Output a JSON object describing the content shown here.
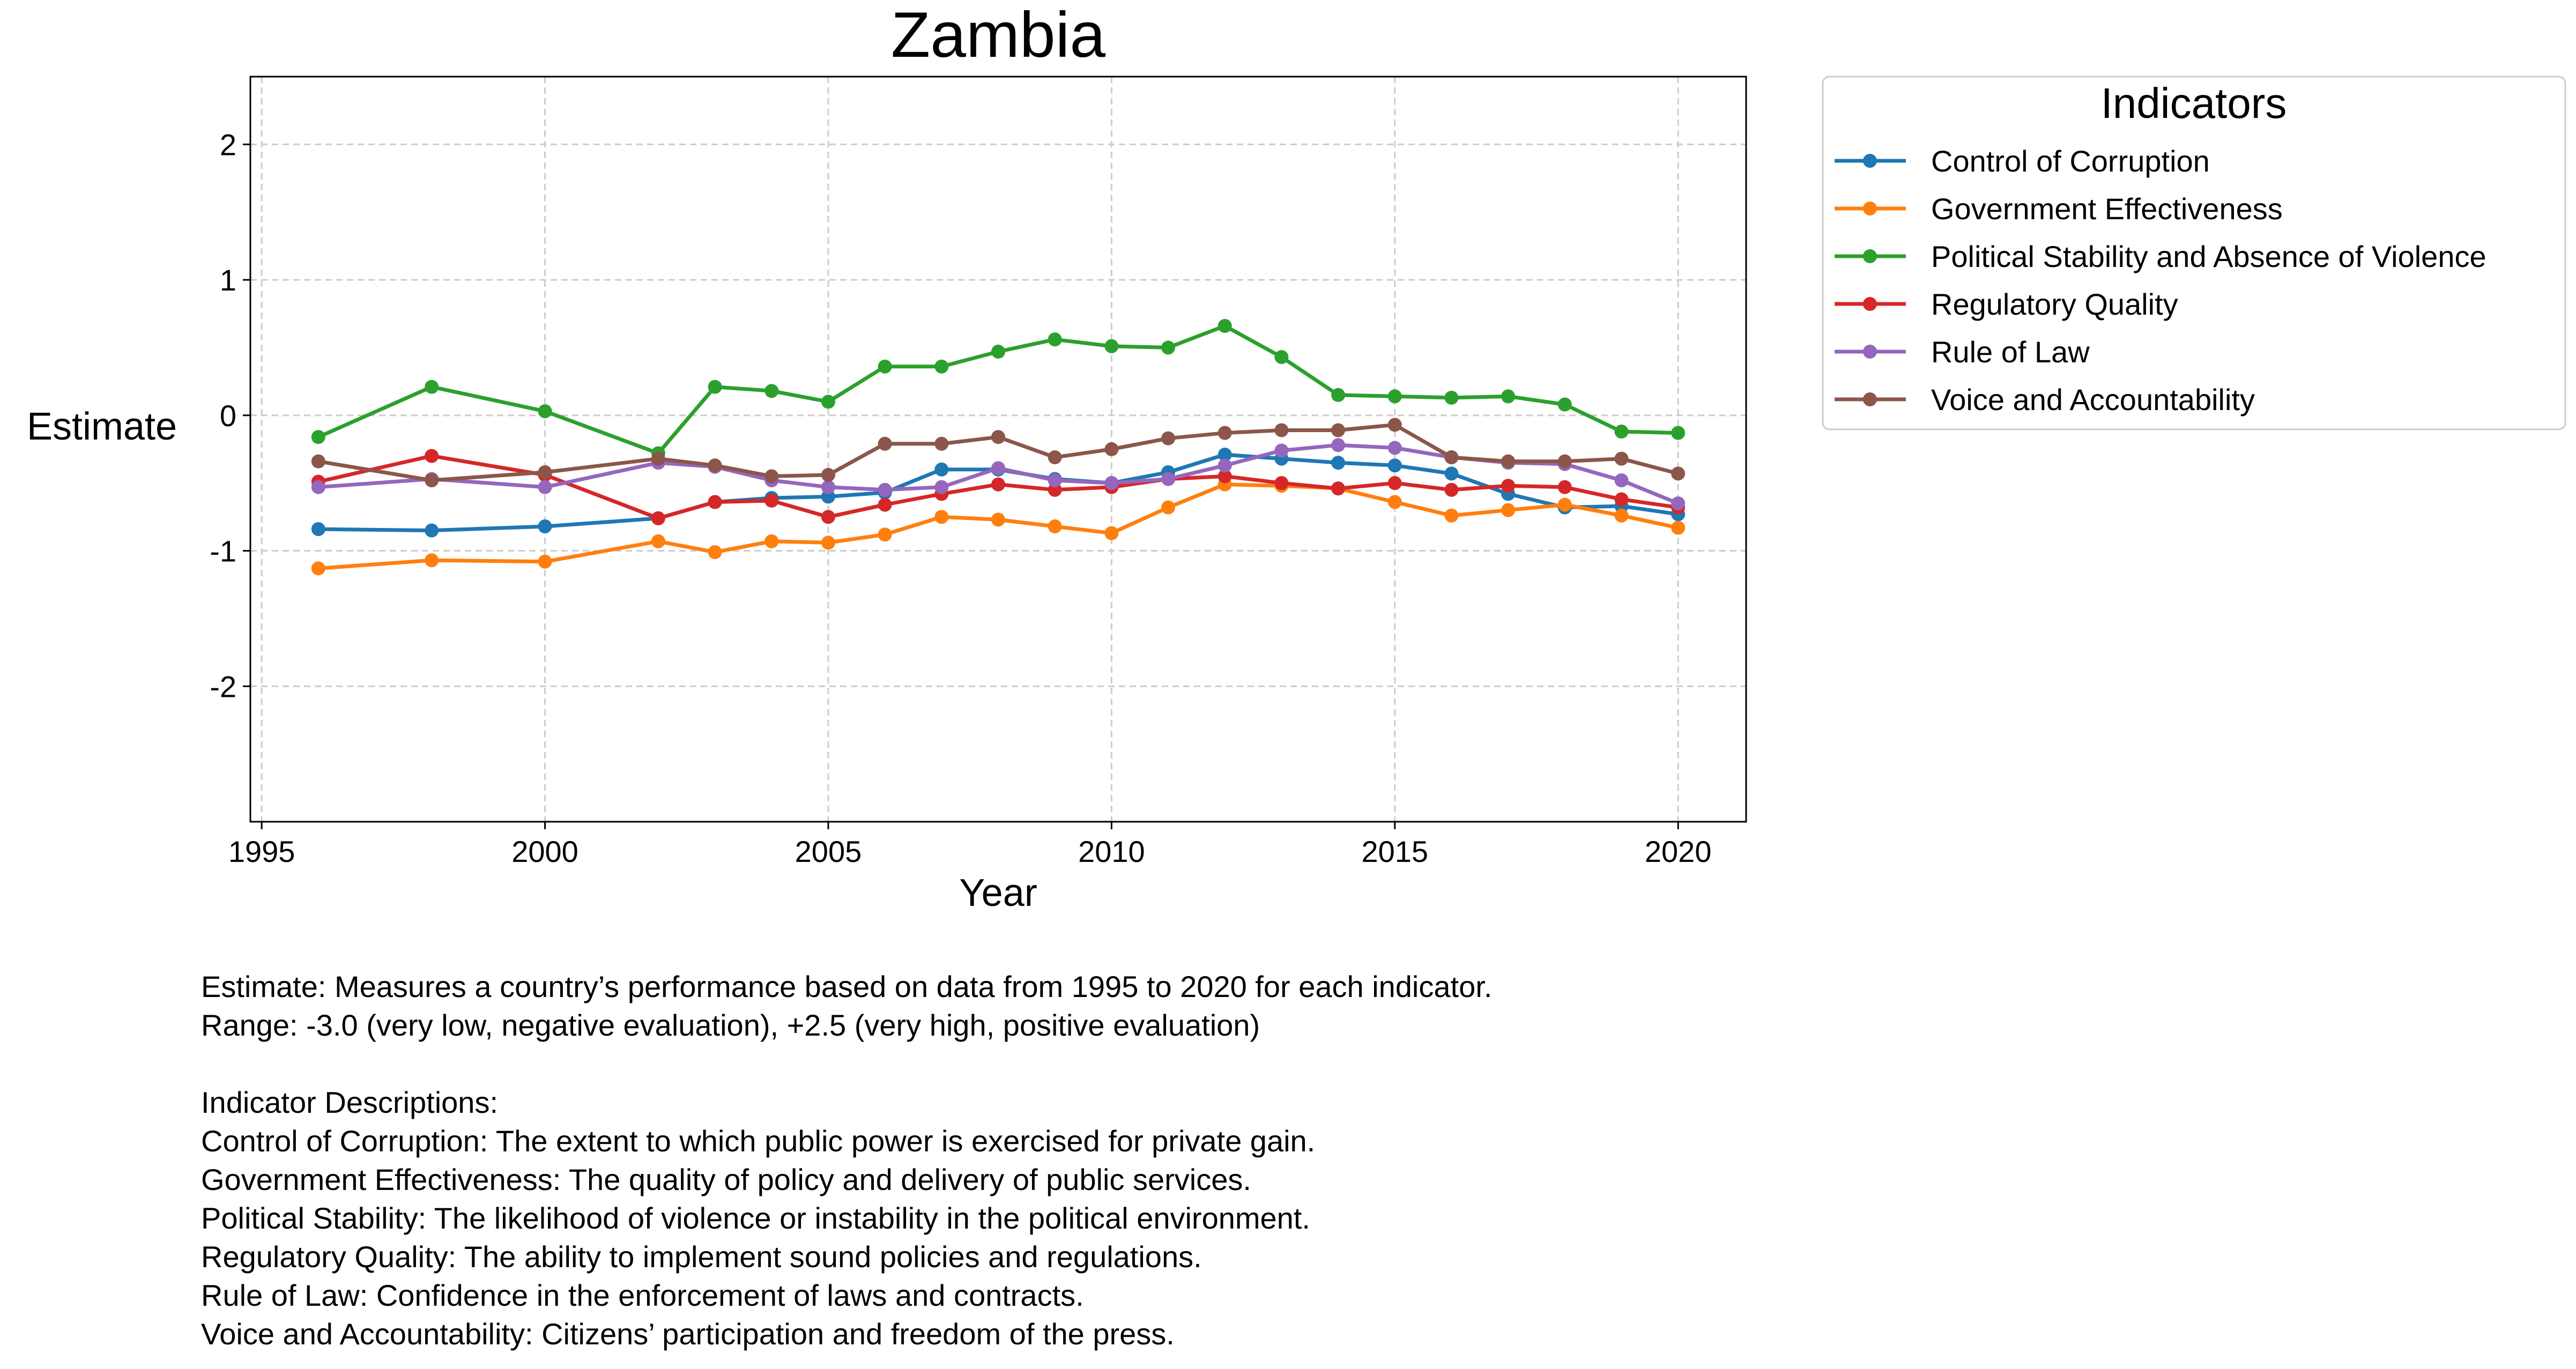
{
  "chart_data": {
    "type": "line",
    "title": "Zambia",
    "xlabel": "Year",
    "ylabel": "Estimate",
    "xlim": [
      1994.8,
      2021.2
    ],
    "ylim": [
      -3.0,
      2.5
    ],
    "x_ticks": [
      1995,
      2000,
      2005,
      2010,
      2015,
      2020
    ],
    "y_ticks": [
      -2,
      -1,
      0,
      1,
      2
    ],
    "grid": true,
    "legend": {
      "title": "Indicators",
      "placement": "outside-top-right"
    },
    "x": [
      1996,
      1998,
      2000,
      2002,
      2003,
      2004,
      2005,
      2006,
      2007,
      2008,
      2009,
      2010,
      2011,
      2012,
      2013,
      2014,
      2015,
      2016,
      2017,
      2018,
      2019,
      2020
    ],
    "series": [
      {
        "name": "Control of Corruption",
        "color": "#1f77b4",
        "values": [
          -0.84,
          -0.85,
          -0.82,
          -0.76,
          -0.64,
          -0.61,
          -0.6,
          -0.57,
          -0.4,
          -0.4,
          -0.47,
          -0.5,
          -0.42,
          -0.29,
          -0.32,
          -0.35,
          -0.37,
          -0.43,
          -0.58,
          -0.68,
          -0.67,
          -0.73
        ]
      },
      {
        "name": "Government Effectiveness",
        "color": "#ff7f0e",
        "values": [
          -1.13,
          -1.07,
          -1.08,
          -0.93,
          -1.01,
          -0.93,
          -0.94,
          -0.88,
          -0.75,
          -0.77,
          -0.82,
          -0.87,
          -0.68,
          -0.51,
          -0.52,
          -0.54,
          -0.64,
          -0.74,
          -0.7,
          -0.66,
          -0.74,
          -0.83
        ]
      },
      {
        "name": "Political Stability and Absence of Violence",
        "color": "#2ca02c",
        "values": [
          -0.16,
          0.21,
          0.03,
          -0.28,
          0.21,
          0.18,
          0.1,
          0.36,
          0.36,
          0.47,
          0.56,
          0.51,
          0.5,
          0.66,
          0.43,
          0.15,
          0.14,
          0.13,
          0.14,
          0.08,
          -0.12,
          -0.13
        ]
      },
      {
        "name": "Regulatory Quality",
        "color": "#d62728",
        "values": [
          -0.49,
          -0.3,
          -0.44,
          -0.76,
          -0.64,
          -0.63,
          -0.75,
          -0.66,
          -0.58,
          -0.51,
          -0.55,
          -0.53,
          -0.47,
          -0.45,
          -0.5,
          -0.54,
          -0.5,
          -0.55,
          -0.52,
          -0.53,
          -0.62,
          -0.68
        ]
      },
      {
        "name": "Rule of Law",
        "color": "#9467bd",
        "values": [
          -0.53,
          -0.47,
          -0.53,
          -0.35,
          -0.38,
          -0.48,
          -0.53,
          -0.55,
          -0.53,
          -0.39,
          -0.48,
          -0.5,
          -0.47,
          -0.37,
          -0.26,
          -0.22,
          -0.24,
          -0.31,
          -0.35,
          -0.36,
          -0.48,
          -0.65
        ]
      },
      {
        "name": "Voice and Accountability",
        "color": "#8c564b",
        "values": [
          -0.34,
          -0.48,
          -0.42,
          -0.32,
          -0.37,
          -0.45,
          -0.44,
          -0.21,
          -0.21,
          -0.16,
          -0.31,
          -0.25,
          -0.17,
          -0.13,
          -0.11,
          -0.11,
          -0.07,
          -0.31,
          -0.34,
          -0.34,
          -0.32,
          -0.43
        ]
      }
    ]
  },
  "notes": {
    "line1": "Estimate: Measures a country’s performance based on data from 1995 to 2020 for each indicator.",
    "line2": "Range: -3.0 (very low, negative evaluation), +2.5 (very high, positive evaluation)",
    "heading": "Indicator Descriptions:",
    "desc1": "Control of Corruption: The extent to which public power is exercised for private gain.",
    "desc2": "Government Effectiveness: The quality of policy and delivery of public services.",
    "desc3": "Political Stability: The likelihood of violence or instability in the political environment.",
    "desc4": "Regulatory Quality: The ability to implement sound policies and regulations.",
    "desc5": "Rule of Law: Confidence in the enforcement of laws and contracts.",
    "desc6": "Voice and Accountability: Citizens’ participation and freedom of the press."
  }
}
